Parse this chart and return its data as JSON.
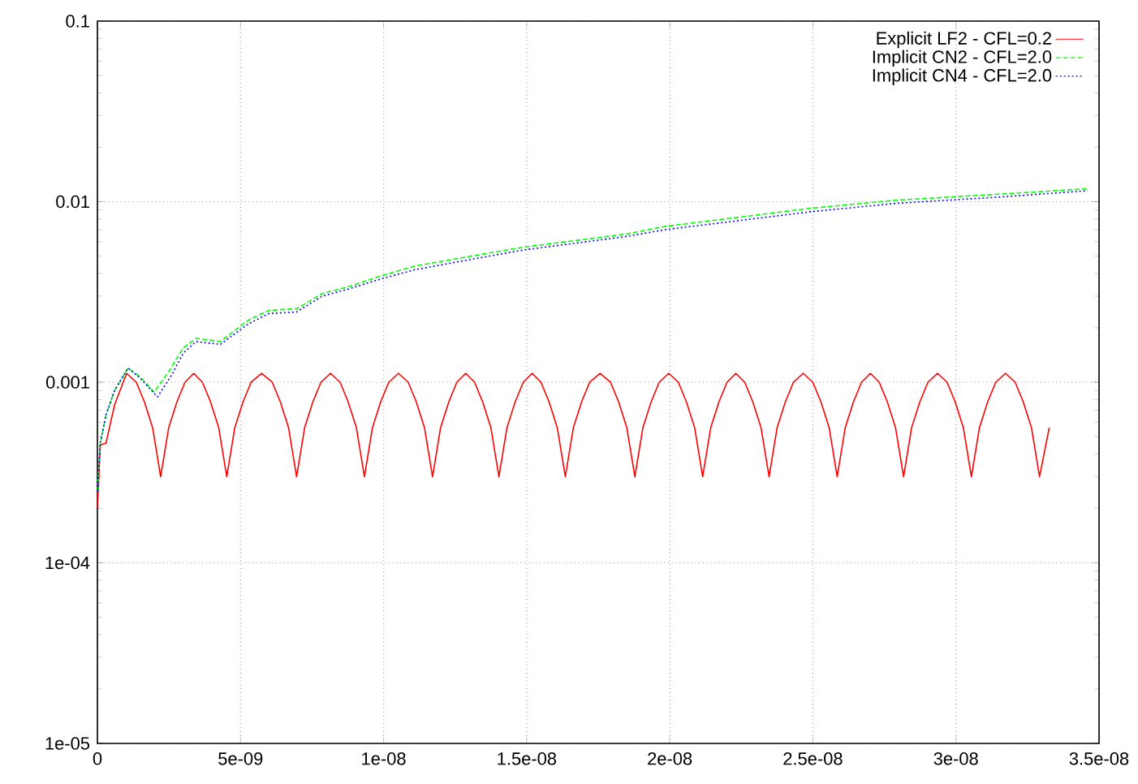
{
  "chart_data": {
    "type": "line",
    "log": "y",
    "grid": true,
    "legend": "top right",
    "xlim": [
      0,
      3.5e-08
    ],
    "ylim": [
      1e-05,
      0.1
    ],
    "xticks": [
      0,
      {
        "value": 5e-09,
        "label": "5e-09"
      },
      {
        "value": 1e-08,
        "label": "1e-08"
      },
      {
        "value": 1.5e-08,
        "label": "1.5e-08"
      },
      {
        "value": 2e-08,
        "label": "2e-08"
      },
      {
        "value": 2.5e-08,
        "label": "2.5e-08"
      },
      {
        "value": 3e-08,
        "label": "3e-08"
      },
      {
        "value": 3.5e-08,
        "label": "3.5e-08"
      }
    ],
    "yticks": [
      {
        "value": 1e-05,
        "label": "1e-05"
      },
      {
        "value": 0.0001,
        "label": "1e-04"
      },
      0.001,
      0.01,
      0.1
    ],
    "series": [
      {
        "name": "Explicit LF2 - CFL=0.2",
        "color": "#ff0000",
        "line_style": "solid",
        "x": [
          0,
          1e-10,
          3e-10,
          6e-10,
          1.02e-09,
          1.36e-09,
          1.64e-09,
          1.93e-09,
          2.21e-09,
          2.49e-09,
          2.78e-09,
          3.06e-09,
          3.365e-09,
          3.67e-09,
          3.95e-09,
          4.24e-09,
          4.52e-09,
          4.8e-09,
          5.09e-09,
          5.37e-09,
          5.74e-09,
          6.11e-09,
          6.39e-09,
          6.68e-09,
          6.96e-09,
          7.24e-09,
          7.53e-09,
          7.81e-09,
          8.145e-09,
          8.48e-09,
          8.76e-09,
          9.05e-09,
          9.33e-09,
          9.61e-09,
          9.9e-09,
          1.018e-08,
          1.052e-08,
          1.086e-08,
          1.114e-08,
          1.143e-08,
          1.171e-08,
          1.199e-08,
          1.228e-08,
          1.256e-08,
          1.287e-08,
          1.318e-08,
          1.346e-08,
          1.375e-08,
          1.403e-08,
          1.431e-08,
          1.46e-08,
          1.488e-08,
          1.519e-08,
          1.55e-08,
          1.578e-08,
          1.607e-08,
          1.635e-08,
          1.663e-08,
          1.692e-08,
          1.72e-08,
          1.7565e-08,
          1.793e-08,
          1.821e-08,
          1.85e-08,
          1.878e-08,
          1.906e-08,
          1.935e-08,
          1.963e-08,
          1.9965e-08,
          2.03e-08,
          2.058e-08,
          2.087e-08,
          2.115e-08,
          2.143e-08,
          2.172e-08,
          2.2e-08,
          2.231e-08,
          2.262e-08,
          2.29e-08,
          2.319e-08,
          2.347e-08,
          2.375e-08,
          2.404e-08,
          2.432e-08,
          2.466e-08,
          2.5e-08,
          2.528e-08,
          2.557e-08,
          2.585e-08,
          2.613e-08,
          2.642e-08,
          2.67e-08,
          2.701e-08,
          2.732e-08,
          2.76e-08,
          2.789e-08,
          2.817e-08,
          2.845e-08,
          2.874e-08,
          2.902e-08,
          2.9355e-08,
          2.969e-08,
          2.997e-08,
          3.026e-08,
          3.054e-08,
          3.082e-08,
          3.111e-08,
          3.139e-08,
          3.173e-08,
          3.207e-08,
          3.235e-08,
          3.264e-08,
          3.292e-08,
          3.326e-08
        ],
        "values": [
          0.0002,
          0.00045,
          0.00046,
          0.00075,
          0.00112,
          0.001,
          0.00078,
          0.00056,
          0.0003,
          0.00056,
          0.00078,
          0.001,
          0.00112,
          0.001,
          0.00078,
          0.00056,
          0.0003,
          0.00056,
          0.00078,
          0.001,
          0.00112,
          0.001,
          0.00078,
          0.00056,
          0.0003,
          0.00056,
          0.00078,
          0.001,
          0.00112,
          0.001,
          0.00078,
          0.00056,
          0.0003,
          0.00056,
          0.00078,
          0.001,
          0.00112,
          0.001,
          0.00078,
          0.00056,
          0.0003,
          0.00056,
          0.00078,
          0.001,
          0.00112,
          0.001,
          0.00078,
          0.00056,
          0.0003,
          0.00056,
          0.00078,
          0.001,
          0.00112,
          0.001,
          0.00078,
          0.00056,
          0.0003,
          0.00056,
          0.00078,
          0.001,
          0.00112,
          0.001,
          0.00078,
          0.00056,
          0.0003,
          0.00056,
          0.00078,
          0.001,
          0.00112,
          0.001,
          0.00078,
          0.00056,
          0.0003,
          0.00056,
          0.00078,
          0.001,
          0.00112,
          0.001,
          0.00078,
          0.00056,
          0.0003,
          0.00056,
          0.00078,
          0.001,
          0.00112,
          0.001,
          0.00078,
          0.00056,
          0.0003,
          0.00056,
          0.00078,
          0.001,
          0.00112,
          0.001,
          0.00078,
          0.00056,
          0.0003,
          0.00056,
          0.00078,
          0.001,
          0.00112,
          0.001,
          0.00078,
          0.00056,
          0.0003,
          0.00056,
          0.00078,
          0.001,
          0.00112,
          0.001,
          0.00078,
          0.00056,
          0.0003,
          0.00056
        ]
      },
      {
        "name": "Implicit CN2 - CFL=2.0",
        "color": "#00ff00",
        "line_style": "dashed",
        "x": [
          0,
          1e-10,
          3e-10,
          6e-10,
          1.07e-09,
          1.5e-09,
          1.98e-09,
          2.5e-09,
          3e-09,
          3.45e-09,
          4.3e-09,
          5.26e-09,
          5.99e-09,
          6.96e-09,
          7.86e-09,
          8.82e-09,
          9.95e-09,
          1.109e-08,
          1.261e-08,
          1.488e-08,
          1.844e-08,
          1.985e-08,
          2.494e-08,
          2.794e-08,
          3.15e-08,
          3.46e-08
        ],
        "values": [
          0.00025,
          0.00046,
          0.00066,
          0.0009,
          0.0012,
          0.00107,
          0.00088,
          0.00115,
          0.00155,
          0.00175,
          0.00168,
          0.0022,
          0.0025,
          0.00255,
          0.0031,
          0.0034,
          0.0039,
          0.0044,
          0.00485,
          0.0056,
          0.0066,
          0.0073,
          0.0092,
          0.0102,
          0.011,
          0.0118
        ]
      },
      {
        "name": "Implicit CN4 - CFL=2.0",
        "color": "#0000ff",
        "line_style": "dotted",
        "x": [
          0,
          1e-10,
          3e-10,
          6e-10,
          1.07e-09,
          1.5e-09,
          2.1e-09,
          2.6e-09,
          3e-09,
          3.45e-09,
          4.3e-09,
          5.26e-09,
          5.99e-09,
          6.96e-09,
          7.86e-09,
          8.82e-09,
          9.95e-09,
          1.109e-08,
          1.261e-08,
          1.488e-08,
          1.844e-08,
          1.985e-08,
          2.494e-08,
          2.794e-08,
          3.15e-08,
          3.46e-08
        ],
        "values": [
          0.00025,
          0.00046,
          0.00066,
          0.0009,
          0.0012,
          0.00105,
          0.00083,
          0.0011,
          0.00145,
          0.00168,
          0.00162,
          0.0021,
          0.0024,
          0.00245,
          0.003,
          0.0033,
          0.00375,
          0.0042,
          0.00465,
          0.0054,
          0.0064,
          0.007,
          0.0088,
          0.0098,
          0.0106,
          0.0115
        ]
      }
    ]
  }
}
